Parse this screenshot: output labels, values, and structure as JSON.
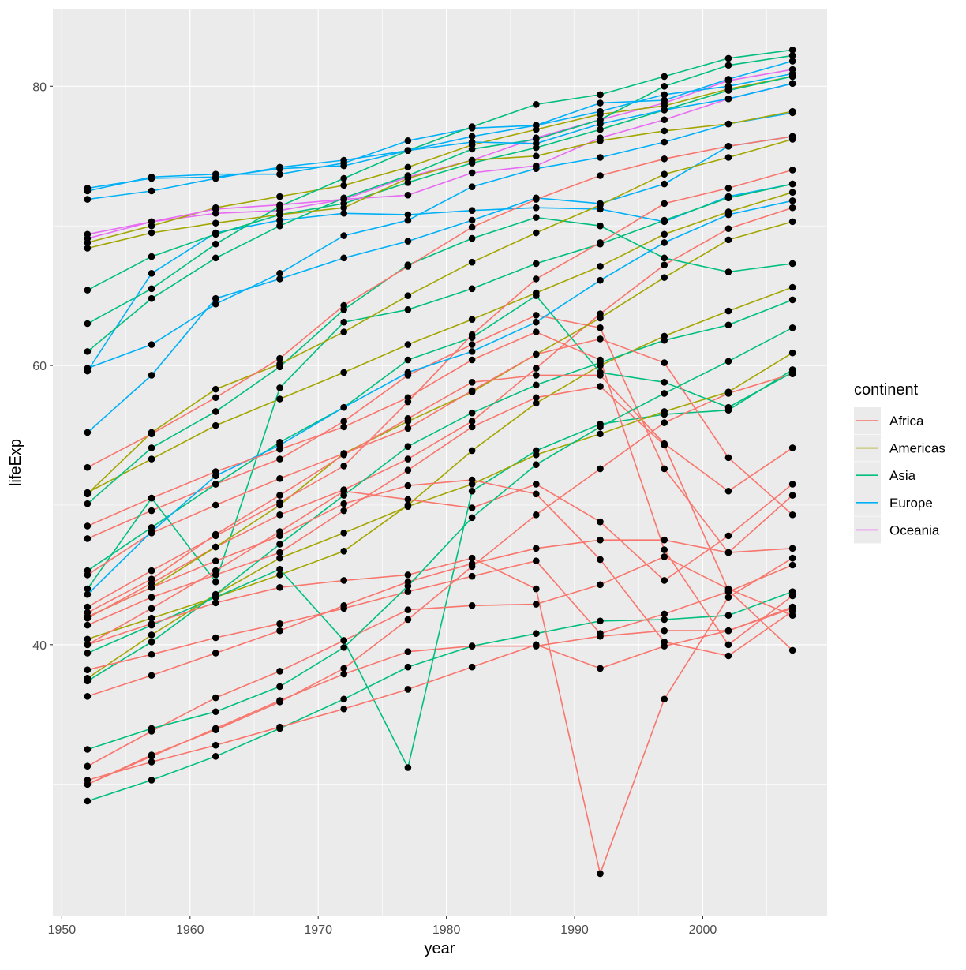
{
  "chart_data": {
    "type": "line",
    "xlabel": "year",
    "ylabel": "lifeExp",
    "xlim": [
      1949.3,
      2009.7
    ],
    "ylim": [
      20.6,
      85.5
    ],
    "x_ticks": [
      1950,
      1960,
      1970,
      1980,
      1990,
      2000
    ],
    "x_tick_labels": [
      "1950",
      "1960",
      "1970",
      "1980",
      "1990",
      "2000"
    ],
    "y_ticks": [
      40,
      60,
      80
    ],
    "y_tick_labels": [
      "40",
      "60",
      "80"
    ],
    "grid": true,
    "points_overlay": true,
    "point_color": "#000000",
    "legend": {
      "title": "continent",
      "placement": "right",
      "entries": [
        {
          "label": "Africa",
          "color": "#F8766D"
        },
        {
          "label": "Americas",
          "color": "#A3A500"
        },
        {
          "label": "Asia",
          "color": "#00BF7D"
        },
        {
          "label": "Europe",
          "color": "#00B0F6"
        },
        {
          "label": "Oceania",
          "color": "#E76BF3"
        }
      ]
    },
    "x": [
      1952,
      1957,
      1962,
      1967,
      1972,
      1977,
      1982,
      1987,
      1992,
      1997,
      2002,
      2007
    ],
    "series": [
      {
        "name": "Asia",
        "values": [
          28.8,
          30.3,
          32.0,
          34.0,
          36.1,
          38.4,
          39.9,
          40.8,
          41.7,
          41.8,
          42.1,
          43.8
        ]
      },
      {
        "name": "Europe",
        "values": [
          55.2,
          59.3,
          64.8,
          66.2,
          67.7,
          68.9,
          70.4,
          72.0,
          71.6,
          73.0,
          75.7,
          76.4
        ]
      },
      {
        "name": "Africa",
        "values": [
          30.0,
          32.0,
          34.0,
          36.0,
          37.9,
          39.5,
          39.9,
          39.9,
          40.6,
          41.0,
          41.0,
          42.7
        ]
      },
      {
        "name": "Oceania",
        "values": [
          69.1,
          70.3,
          70.9,
          71.1,
          71.9,
          73.5,
          74.7,
          76.3,
          77.6,
          78.8,
          80.4,
          81.2
        ]
      },
      {
        "name": "Americas",
        "values": [
          40.4,
          41.9,
          43.4,
          45.0,
          46.7,
          50.0,
          53.9,
          57.3,
          60.0,
          62.1,
          63.9,
          65.6
        ]
      },
      {
        "name": "Africa",
        "values": [
          47.6,
          49.6,
          51.5,
          53.3,
          56.0,
          59.3,
          61.5,
          63.6,
          62.7,
          52.6,
          46.6,
          50.7
        ]
      },
      {
        "name": "Americas",
        "values": [
          50.9,
          53.3,
          55.7,
          57.6,
          59.5,
          61.5,
          63.3,
          65.2,
          67.1,
          69.4,
          71.0,
          72.4
        ]
      },
      {
        "name": "Europe",
        "values": [
          59.6,
          66.6,
          69.5,
          70.4,
          70.9,
          70.8,
          71.1,
          71.3,
          71.2,
          70.3,
          72.1,
          73.0
        ]
      },
      {
        "name": "Asia",
        "values": [
          39.4,
          41.4,
          43.4,
          45.4,
          40.3,
          31.2,
          51.0,
          53.9,
          55.8,
          56.5,
          56.8,
          59.7
        ]
      },
      {
        "name": "Americas",
        "values": [
          68.8,
          70.0,
          71.3,
          72.1,
          72.9,
          74.2,
          75.8,
          76.9,
          78.0,
          78.6,
          79.8,
          80.7
        ]
      },
      {
        "name": "Asia",
        "values": [
          44.0,
          50.5,
          44.5,
          58.4,
          63.1,
          64.0,
          65.5,
          67.3,
          68.7,
          70.4,
          72.0,
          73.0
        ]
      },
      {
        "name": "Africa",
        "values": [
          41.9,
          44.4,
          47.0,
          49.3,
          51.1,
          53.3,
          56.0,
          59.8,
          63.7,
          67.2,
          69.8,
          71.3
        ]
      },
      {
        "name": "Africa",
        "values": [
          30.0,
          32.1,
          33.9,
          35.9,
          38.3,
          41.8,
          45.6,
          49.3,
          52.6,
          55.9,
          58.0,
          59.4
        ]
      },
      {
        "name": "Americas",
        "values": [
          42.0,
          44.1,
          47.0,
          50.0,
          53.7,
          56.0,
          58.1,
          60.8,
          63.4,
          66.3,
          69.0,
          70.3
        ]
      },
      {
        "name": "Americas",
        "values": [
          37.6,
          40.7,
          43.6,
          46.2,
          48.0,
          49.9,
          51.5,
          53.6,
          55.1,
          56.7,
          58.1,
          60.9
        ]
      },
      {
        "name": "Asia",
        "values": [
          61.0,
          64.8,
          67.7,
          70.0,
          72.0,
          73.6,
          75.5,
          76.2,
          77.6,
          80.0,
          81.5,
          82.2
        ]
      },
      {
        "name": "Europe",
        "values": [
          72.5,
          73.5,
          73.7,
          73.7,
          74.5,
          76.1,
          77.0,
          77.2,
          78.8,
          79.0,
          80.5,
          81.8
        ]
      },
      {
        "name": "Asia",
        "values": [
          37.4,
          40.2,
          43.6,
          47.2,
          50.7,
          54.2,
          56.6,
          58.6,
          60.2,
          61.8,
          62.9,
          64.7
        ]
      },
      {
        "name": "Asia",
        "values": [
          45.3,
          48.4,
          51.5,
          54.5,
          57.0,
          60.4,
          62.0,
          65.0,
          59.5,
          58.8,
          57.0,
          59.5
        ]
      },
      {
        "name": "Asia",
        "values": [
          65.4,
          67.8,
          69.4,
          70.8,
          71.6,
          73.1,
          74.5,
          75.6,
          76.9,
          78.3,
          79.7,
          80.7
        ]
      },
      {
        "name": "Asia",
        "values": [
          63.0,
          65.5,
          68.7,
          71.4,
          73.4,
          75.4,
          77.1,
          78.7,
          79.4,
          80.7,
          82.0,
          82.6
        ]
      },
      {
        "name": "Africa",
        "values": [
          42.3,
          44.7,
          47.9,
          50.7,
          53.6,
          56.2,
          58.8,
          59.3,
          59.3,
          54.4,
          51.0,
          54.1
        ]
      },
      {
        "name": "Asia",
        "values": [
          50.1,
          54.1,
          56.7,
          59.9,
          64.0,
          67.2,
          69.1,
          70.6,
          70.0,
          67.7,
          66.7,
          67.3
        ]
      },
      {
        "name": "Africa",
        "values": [
          38.2,
          39.3,
          40.5,
          41.5,
          42.6,
          43.8,
          44.9,
          46.0,
          40.8,
          42.2,
          43.8,
          45.7
        ]
      },
      {
        "name": "Africa",
        "values": [
          42.7,
          45.3,
          47.8,
          50.2,
          52.8,
          57.4,
          62.2,
          66.2,
          68.8,
          71.6,
          72.7,
          74.0
        ]
      },
      {
        "name": "Americas",
        "values": [
          50.8,
          55.2,
          58.3,
          60.1,
          62.4,
          65.0,
          67.4,
          69.5,
          71.5,
          73.7,
          74.9,
          76.2
        ]
      },
      {
        "name": "Africa",
        "values": [
          31.3,
          33.8,
          36.2,
          38.1,
          40.3,
          42.5,
          42.8,
          42.9,
          44.3,
          46.3,
          44.0,
          42.1
        ]
      },
      {
        "name": "Oceania",
        "values": [
          69.4,
          70.3,
          71.2,
          71.5,
          71.9,
          72.2,
          73.8,
          74.3,
          76.3,
          77.6,
          79.1,
          80.2
        ]
      },
      {
        "name": "Africa",
        "values": [
          36.3,
          37.8,
          39.4,
          41.0,
          42.8,
          44.5,
          45.8,
          46.9,
          47.5,
          47.5,
          46.6,
          46.9
        ]
      },
      {
        "name": "Europe",
        "values": [
          72.7,
          73.4,
          73.5,
          74.1,
          74.3,
          75.4,
          76.0,
          75.9,
          77.3,
          78.3,
          79.1,
          80.2
        ]
      },
      {
        "name": "Europe",
        "values": [
          59.8,
          61.5,
          64.4,
          66.6,
          69.3,
          70.4,
          72.8,
          74.1,
          74.9,
          76.0,
          77.3,
          78.1
        ]
      },
      {
        "name": "Africa",
        "values": [
          52.7,
          55.1,
          57.7,
          60.5,
          64.3,
          67.1,
          69.9,
          71.9,
          73.6,
          74.8,
          75.7,
          76.4
        ]
      },
      {
        "name": "Africa",
        "values": [
          40.0,
          41.5,
          43.0,
          44.1,
          44.6,
          45.0,
          46.2,
          44.0,
          23.6,
          36.1,
          43.4,
          46.2
        ]
      },
      {
        "name": "Africa",
        "values": [
          30.3,
          31.6,
          32.8,
          34.1,
          35.4,
          36.8,
          38.4,
          40.0,
          38.3,
          39.9,
          41.0,
          42.6
        ]
      },
      {
        "name": "Africa",
        "values": [
          45.0,
          48.0,
          50.0,
          51.9,
          53.7,
          55.5,
          58.2,
          60.8,
          61.9,
          60.2,
          53.4,
          49.3
        ]
      },
      {
        "name": "Africa",
        "values": [
          41.4,
          43.4,
          45.0,
          46.6,
          49.6,
          52.5,
          55.6,
          57.7,
          58.5,
          54.3,
          43.9,
          39.6
        ]
      },
      {
        "name": "Europe",
        "values": [
          71.9,
          72.5,
          73.4,
          74.2,
          74.7,
          75.4,
          76.4,
          77.2,
          78.2,
          79.4,
          80.0,
          80.9
        ]
      },
      {
        "name": "Europe",
        "values": [
          43.6,
          48.1,
          52.1,
          54.3,
          57.0,
          59.5,
          61.0,
          63.1,
          66.1,
          68.8,
          70.8,
          71.8
        ]
      },
      {
        "name": "Africa",
        "values": [
          40.0,
          42.6,
          45.3,
          48.1,
          51.0,
          50.4,
          49.8,
          51.5,
          48.8,
          44.6,
          47.8,
          51.5
        ]
      },
      {
        "name": "Americas",
        "values": [
          68.4,
          69.5,
          70.2,
          70.8,
          71.3,
          73.4,
          74.7,
          75.0,
          76.1,
          76.8,
          77.3,
          78.2
        ]
      },
      {
        "name": "Asia",
        "values": [
          32.5,
          34.0,
          35.2,
          37.0,
          39.8,
          44.2,
          49.1,
          52.9,
          55.6,
          58.0,
          60.3,
          62.7
        ]
      },
      {
        "name": "Africa",
        "values": [
          42.0,
          44.1,
          46.0,
          47.8,
          50.1,
          51.4,
          51.8,
          50.8,
          46.1,
          40.2,
          39.2,
          42.4
        ]
      },
      {
        "name": "Africa",
        "values": [
          48.5,
          50.5,
          52.4,
          54.0,
          55.6,
          57.7,
          60.4,
          62.4,
          60.4,
          46.8,
          40.0,
          43.5
        ]
      }
    ]
  }
}
